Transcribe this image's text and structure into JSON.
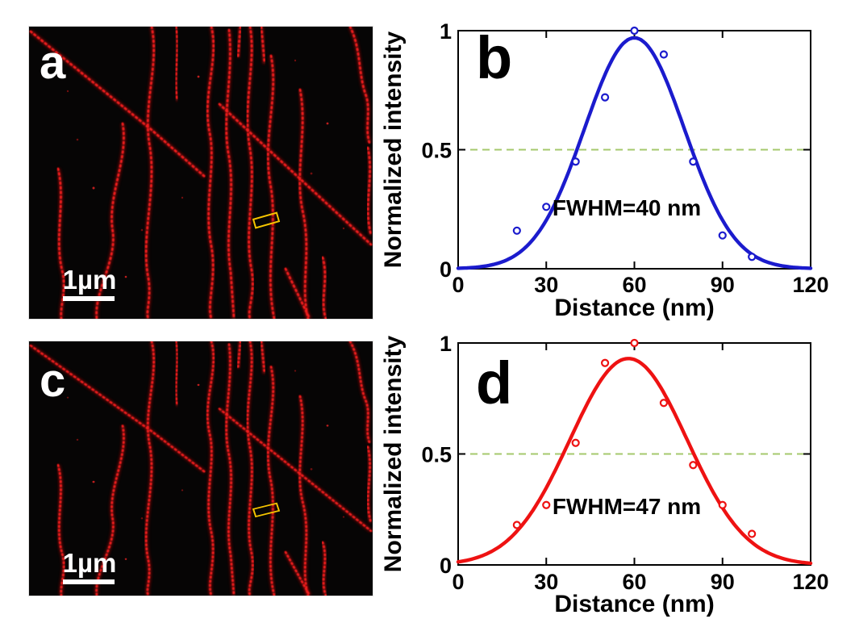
{
  "figure": {
    "panels": {
      "a": {
        "label": "a",
        "scalebar_label": "1µm"
      },
      "c": {
        "label": "c",
        "scalebar_label": "1µm"
      }
    },
    "colors": {
      "filament_red": "#ef1c1c",
      "micrograph_background": "#060505",
      "roi_outline": "#f6c500",
      "scalebar_white": "#ffffff"
    }
  },
  "chart_data": [
    {
      "id": "b",
      "type": "scatter",
      "panel_label": "b",
      "xlabel": "Distance (nm)",
      "ylabel": "Normalized intensity",
      "xlim": [
        0,
        120
      ],
      "ylim": [
        0,
        1
      ],
      "xticks": [
        0,
        30,
        60,
        90,
        120
      ],
      "xtick_labels": [
        "0",
        "30",
        "60",
        "90",
        "120"
      ],
      "yticks": [
        0,
        0.5,
        1
      ],
      "ytick_labels": [
        "0",
        "0.5",
        "1"
      ],
      "annotation": "FWHM=40 nm",
      "fwhm_nm": 40,
      "grid": false,
      "legend": "none",
      "color": "#1b1bcd",
      "reference_line": {
        "y": 0.5,
        "color": "#a5c96c",
        "style": "dashed"
      },
      "series": [
        {
          "name": "measured points",
          "type": "scatter",
          "x": [
            20,
            30,
            40,
            50,
            60,
            70,
            80,
            90,
            100
          ],
          "y": [
            0.16,
            0.26,
            0.45,
            0.72,
            1.0,
            0.9,
            0.45,
            0.14,
            0.05
          ]
        },
        {
          "name": "gaussian fit",
          "type": "line",
          "gaussian": {
            "center": 60,
            "peak": 0.97,
            "fwhm": 40
          }
        }
      ]
    },
    {
      "id": "d",
      "type": "scatter",
      "panel_label": "d",
      "xlabel": "Distance (nm)",
      "ylabel": "Normalized intensity",
      "xlim": [
        0,
        120
      ],
      "ylim": [
        0,
        1
      ],
      "xticks": [
        0,
        30,
        60,
        90,
        120
      ],
      "xtick_labels": [
        "0",
        "30",
        "60",
        "90",
        "120"
      ],
      "yticks": [
        0,
        0.5,
        1
      ],
      "ytick_labels": [
        "0",
        "0.5",
        "1"
      ],
      "annotation": "FWHM=47 nm",
      "fwhm_nm": 47,
      "grid": false,
      "legend": "none",
      "color": "#ee1212",
      "reference_line": {
        "y": 0.5,
        "color": "#a5c96c",
        "style": "dashed"
      },
      "series": [
        {
          "name": "measured points",
          "type": "scatter",
          "x": [
            20,
            30,
            40,
            50,
            60,
            70,
            80,
            90,
            100
          ],
          "y": [
            0.18,
            0.27,
            0.55,
            0.91,
            1.0,
            0.73,
            0.45,
            0.27,
            0.14
          ]
        },
        {
          "name": "gaussian fit",
          "type": "line",
          "gaussian": {
            "center": 58,
            "peak": 0.93,
            "fwhm": 47
          }
        }
      ]
    }
  ]
}
